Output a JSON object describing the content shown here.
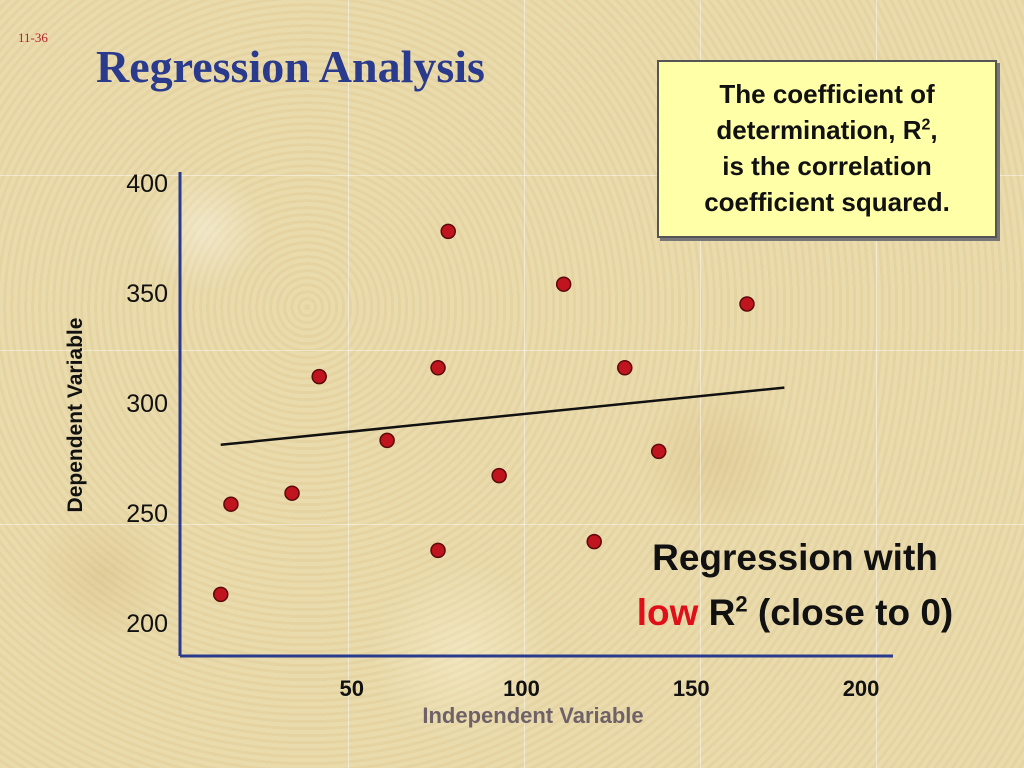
{
  "slide": {
    "number": "11-36",
    "title": "Regression Analysis",
    "callout": {
      "line1": "The coefficient of",
      "line2_pre": "determination, R",
      "line2_sup": "2",
      "line2_post": ",",
      "line3": "is the correlation",
      "line4": "coefficient squared."
    },
    "subtitle": {
      "line1": "Regression with",
      "low_word": "low",
      "r": " R",
      "r_sup": "2",
      "rest": " (close to 0)"
    }
  },
  "colors": {
    "title": "#2a3a8c",
    "axis": "#2a3a8c",
    "point": "#c0141e",
    "low_word": "#e0101a",
    "xlabel": "#6e6268"
  },
  "chart_data": {
    "type": "scatter",
    "title": "",
    "xlabel": "Independent Variable",
    "ylabel": "Dependent Variable",
    "xticks": [
      50,
      100,
      150,
      200
    ],
    "yticks": [
      200,
      250,
      300,
      350,
      400
    ],
    "xlim": [
      0,
      210
    ],
    "ylim": [
      185,
      405
    ],
    "grid": false,
    "points": [
      {
        "x": 12,
        "y": 213
      },
      {
        "x": 15,
        "y": 254
      },
      {
        "x": 33,
        "y": 259
      },
      {
        "x": 41,
        "y": 312
      },
      {
        "x": 61,
        "y": 283
      },
      {
        "x": 76,
        "y": 233
      },
      {
        "x": 76,
        "y": 316
      },
      {
        "x": 79,
        "y": 378
      },
      {
        "x": 94,
        "y": 267
      },
      {
        "x": 113,
        "y": 354
      },
      {
        "x": 122,
        "y": 237
      },
      {
        "x": 131,
        "y": 316
      },
      {
        "x": 141,
        "y": 278
      },
      {
        "x": 167,
        "y": 345
      }
    ],
    "regression_line": {
      "x1": 12,
      "y1": 281,
      "x2": 178,
      "y2": 307
    }
  }
}
